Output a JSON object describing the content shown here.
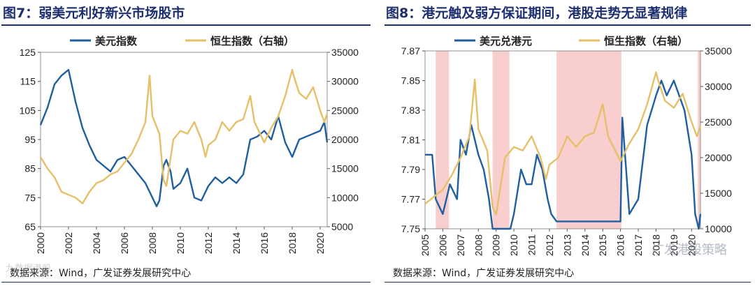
{
  "left": {
    "title": "图7：弱美元利好新兴市场股市",
    "source": "数据来源：Wind，广发证券发展研究中心",
    "watermark": "九数据港股",
    "chart_data": {
      "type": "line",
      "title": "弱美元利好新兴市场股市",
      "x_ticks": [
        "2000",
        "2002",
        "2004",
        "2006",
        "2008",
        "2010",
        "2012",
        "2014",
        "2016",
        "2018",
        "2020"
      ],
      "x_range": [
        2000,
        2020.5
      ],
      "y_left": {
        "range": [
          65,
          125
        ],
        "ticks": [
          "65",
          "75",
          "85",
          "95",
          "105",
          "115",
          "125"
        ]
      },
      "y_right": {
        "range": [
          5000,
          35000
        ],
        "ticks": [
          "5000",
          "10000",
          "15000",
          "20000",
          "25000",
          "30000",
          "35000"
        ]
      },
      "series": [
        {
          "name": "美元指数",
          "axis": "left",
          "color": "#1f5fa0",
          "x": [
            2000,
            2000.5,
            2001,
            2001.5,
            2002,
            2002.5,
            2003,
            2003.5,
            2004,
            2004.5,
            2005,
            2005.5,
            2006,
            2006.5,
            2007,
            2007.5,
            2008,
            2008.3,
            2008.5,
            2008.8,
            2009,
            2009.3,
            2009.5,
            2010,
            2010.5,
            2011,
            2011.5,
            2012,
            2012.5,
            2013,
            2013.5,
            2014,
            2014.5,
            2015,
            2015.5,
            2016,
            2016.5,
            2017,
            2017.5,
            2018,
            2018.5,
            2019,
            2019.5,
            2020,
            2020.3,
            2020.5
          ],
          "values": [
            100,
            106,
            114,
            117,
            119,
            108,
            99,
            93,
            88,
            86,
            84,
            88,
            89,
            86,
            83,
            80,
            75,
            72,
            74,
            86,
            88,
            84,
            78,
            80,
            85,
            75,
            74,
            79,
            82,
            80,
            82,
            80,
            83,
            95,
            96,
            98,
            95,
            103,
            94,
            89,
            95,
            96,
            97,
            98,
            101,
            94
          ]
        },
        {
          "name": "恒生指数（右轴）",
          "axis": "right",
          "color": "#e6c069",
          "x": [
            2000,
            2000.5,
            2001,
            2001.5,
            2002,
            2002.5,
            2003,
            2003.5,
            2004,
            2004.5,
            2005,
            2005.5,
            2006,
            2006.5,
            2007,
            2007.5,
            2007.8,
            2008,
            2008.5,
            2008.8,
            2009,
            2009.5,
            2010,
            2010.5,
            2011,
            2011.5,
            2011.8,
            2012,
            2012.5,
            2013,
            2013.5,
            2014,
            2014.5,
            2015,
            2015.3,
            2015.7,
            2016,
            2016.5,
            2017,
            2017.5,
            2018,
            2018.1,
            2018.5,
            2019,
            2019.5,
            2020,
            2020.3,
            2020.5
          ],
          "values": [
            17000,
            15000,
            13500,
            11000,
            10500,
            10000,
            9000,
            11000,
            12500,
            13000,
            14000,
            14500,
            16000,
            17500,
            20000,
            23000,
            31000,
            24000,
            21000,
            13000,
            12000,
            20000,
            21500,
            21000,
            23000,
            20000,
            17000,
            19000,
            20000,
            23000,
            21500,
            23000,
            23500,
            27500,
            23000,
            21000,
            19500,
            22000,
            24000,
            27500,
            32000,
            31000,
            28000,
            27000,
            29000,
            25000,
            23000,
            24500
          ]
        }
      ]
    }
  },
  "right": {
    "title": "图8：港元触及弱方保证期间，港股走势无显著规律",
    "source": "数据来源：Wind，广发证券发展研究中心",
    "watermark": "广发港股策略",
    "chart_data": {
      "type": "line",
      "title": "港元触及弱方保证期间，港股走势无显著规律",
      "x_ticks": [
        "2005",
        "2006",
        "2007",
        "2008",
        "2009",
        "2010",
        "2011",
        "2012",
        "2013",
        "2014",
        "2015",
        "2016",
        "2017",
        "2018",
        "2019",
        "2020"
      ],
      "x_range": [
        2005,
        2020.5
      ],
      "y_left": {
        "range": [
          7.75,
          7.87
        ],
        "ticks": [
          "7.75",
          "7.77",
          "7.79",
          "7.81",
          "7.83",
          "7.85",
          "7.87"
        ]
      },
      "y_right": {
        "range": [
          10000,
          35000
        ],
        "ticks": [
          "10000",
          "15000",
          "20000",
          "25000",
          "30000",
          "35000"
        ]
      },
      "shaded_periods": [
        [
          2005.6,
          2006.35
        ],
        [
          2008.8,
          2009.75
        ],
        [
          2012.4,
          2016.05
        ],
        [
          2020.35,
          2020.5
        ]
      ],
      "series": [
        {
          "name": "美元兑港元",
          "axis": "left",
          "color": "#1f5fa0",
          "x": [
            2005,
            2005.4,
            2005.6,
            2006,
            2006.4,
            2006.8,
            2007,
            2007.3,
            2007.6,
            2008,
            2008.3,
            2008.6,
            2008.8,
            2009,
            2009.5,
            2009.8,
            2010,
            2010.4,
            2010.7,
            2011,
            2011.3,
            2011.6,
            2011.9,
            2012.1,
            2012.4,
            2012.8,
            2013.2,
            2013.6,
            2014,
            2014.5,
            2015,
            2015.5,
            2016,
            2016.1,
            2016.5,
            2017,
            2017.5,
            2018,
            2018.3,
            2018.6,
            2019,
            2019.3,
            2019.6,
            2020,
            2020.2,
            2020.4,
            2020.5
          ],
          "values": [
            7.8,
            7.8,
            7.77,
            7.76,
            7.78,
            7.77,
            7.81,
            7.8,
            7.82,
            7.8,
            7.79,
            7.77,
            7.75,
            7.75,
            7.75,
            7.75,
            7.76,
            7.79,
            7.78,
            7.78,
            7.8,
            7.79,
            7.77,
            7.76,
            7.755,
            7.755,
            7.755,
            7.755,
            7.755,
            7.755,
            7.755,
            7.755,
            7.755,
            7.825,
            7.76,
            7.77,
            7.82,
            7.84,
            7.85,
            7.84,
            7.85,
            7.84,
            7.83,
            7.8,
            7.76,
            7.75,
            7.76
          ]
        },
        {
          "name": "恒生指数（右轴）",
          "axis": "right",
          "color": "#e6c069",
          "x": [
            2005,
            2005.5,
            2006,
            2006.5,
            2007,
            2007.5,
            2007.8,
            2008,
            2008.5,
            2008.8,
            2009,
            2009.5,
            2010,
            2010.5,
            2011,
            2011.5,
            2011.8,
            2012,
            2012.5,
            2013,
            2013.5,
            2014,
            2014.5,
            2015,
            2015.3,
            2015.7,
            2016,
            2016.5,
            2017,
            2017.5,
            2018,
            2018.1,
            2018.5,
            2019,
            2019.5,
            2020,
            2020.3,
            2020.5
          ],
          "values": [
            13500,
            14500,
            15500,
            17500,
            20000,
            23000,
            31000,
            24000,
            21000,
            13000,
            12000,
            20000,
            21500,
            21000,
            23000,
            20000,
            17000,
            19000,
            20000,
            23000,
            21500,
            23000,
            23500,
            27500,
            23000,
            21000,
            19500,
            22000,
            24000,
            27500,
            32000,
            31000,
            28000,
            27000,
            29000,
            25000,
            23000,
            24500
          ]
        }
      ]
    }
  }
}
